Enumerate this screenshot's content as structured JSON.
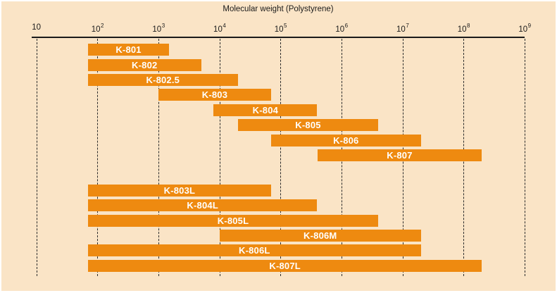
{
  "chart": {
    "panel_color": "#FAE4C6",
    "bar_color": "#EE8A10",
    "bar_label_color": "#FFFFFF",
    "axis_color": "#1A1A1A",
    "grid_color": "#2B2B2B"
  },
  "chart_data": {
    "type": "range-bar",
    "title": "Molecular weight (Polystyrene)",
    "xlabel": "Molecular weight (Polystyrene)",
    "x_scale": "log10",
    "x_min": 10,
    "x_max": 1000000000,
    "tick_exponents": [
      1,
      2,
      3,
      4,
      5,
      6,
      7,
      8,
      9
    ],
    "grid": "dashed-vertical",
    "groups": [
      {
        "name": "upper-group",
        "bars": [
          {
            "label": "K-801",
            "start": 70,
            "end": 1500
          },
          {
            "label": "K-802",
            "start": 70,
            "end": 5000
          },
          {
            "label": "K-802.5",
            "start": 70,
            "end": 20000
          },
          {
            "label": "K-803",
            "start": 1000,
            "end": 70000
          },
          {
            "label": "K-804",
            "start": 8000,
            "end": 400000
          },
          {
            "label": "K-805",
            "start": 20000,
            "end": 4000000
          },
          {
            "label": "K-806",
            "start": 70000,
            "end": 20000000
          },
          {
            "label": "K-807",
            "start": 400000,
            "end": 200000000
          }
        ]
      },
      {
        "name": "lower-group",
        "bars": [
          {
            "label": "K-803L",
            "start": 70,
            "end": 70000
          },
          {
            "label": "K-804L",
            "start": 70,
            "end": 400000
          },
          {
            "label": "K-805L",
            "start": 70,
            "end": 4000000
          },
          {
            "label": "K-806M",
            "start": 10000,
            "end": 20000000
          },
          {
            "label": "K-806L",
            "start": 70,
            "end": 20000000
          },
          {
            "label": "K-807L",
            "start": 70,
            "end": 200000000
          }
        ]
      }
    ]
  }
}
